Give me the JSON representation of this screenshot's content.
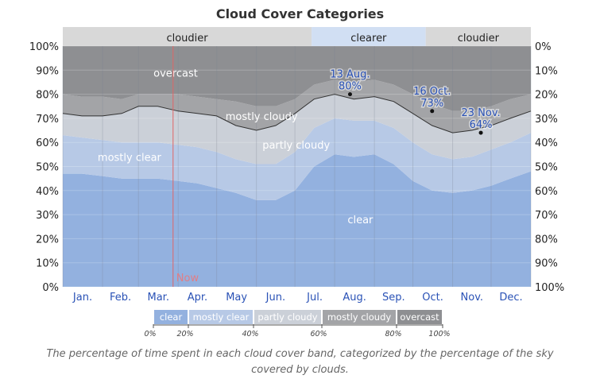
{
  "chart_data": {
    "type": "area",
    "title": "Cloud Cover Categories",
    "caption": "The percentage of time spent in each cloud cover band, categorized by the percentage of the sky covered by clouds.",
    "months": [
      "Jan.",
      "Feb.",
      "Mar.",
      "Apr.",
      "May",
      "Jun.",
      "Jul.",
      "Aug.",
      "Sep.",
      "Oct.",
      "Nov.",
      "Dec."
    ],
    "y_ticks_left": [
      "0%",
      "10%",
      "20%",
      "30%",
      "40%",
      "50%",
      "60%",
      "70%",
      "80%",
      "90%",
      "100%"
    ],
    "y_ticks_right": [
      "100%",
      "90%",
      "80%",
      "70%",
      "60%",
      "50%",
      "40%",
      "30%",
      "20%",
      "10%",
      "0%"
    ],
    "ylim": [
      0,
      100
    ],
    "x_day_of_year": [
      0,
      15,
      31,
      46,
      59,
      74,
      90,
      105,
      120,
      135,
      151,
      166,
      181,
      196,
      212,
      227,
      243,
      258,
      273,
      288,
      304,
      319,
      334,
      349,
      365
    ],
    "series": [
      {
        "name": "clear",
        "color": "#93b1df",
        "cumulative_upper": [
          47,
          47,
          46,
          45,
          45,
          45,
          44,
          43,
          41,
          39,
          36,
          36,
          40,
          50,
          55,
          54,
          55,
          51,
          44,
          40,
          39,
          40,
          42,
          45,
          48
        ]
      },
      {
        "name": "mostly clear",
        "color": "#b7c9e6",
        "cumulative_upper": [
          63,
          62,
          61,
          60,
          60,
          60,
          59,
          58,
          56,
          53,
          51,
          51,
          56,
          66,
          70,
          69,
          69,
          66,
          60,
          55,
          53,
          54,
          57,
          60,
          64
        ]
      },
      {
        "name": "partly cloudy",
        "color": "#cbd0d8",
        "cumulative_upper": [
          72,
          71,
          71,
          72,
          75,
          75,
          73,
          72,
          71,
          67,
          65,
          67,
          72,
          78,
          80,
          78,
          79,
          77,
          72,
          67,
          64,
          65,
          67,
          70,
          73
        ]
      },
      {
        "name": "mostly cloudy",
        "color": "#a3a4a7",
        "cumulative_upper": [
          80,
          79,
          79,
          78,
          80,
          80,
          80,
          79,
          78,
          77,
          75,
          75,
          78,
          84,
          86,
          85,
          86,
          84,
          80,
          76,
          73,
          73,
          75,
          78,
          80
        ]
      },
      {
        "name": "overcast",
        "color": "#8e8f92",
        "cumulative_upper": [
          100,
          100,
          100,
          100,
          100,
          100,
          100,
          100,
          100,
          100,
          100,
          100,
          100,
          100,
          100,
          100,
          100,
          100,
          100,
          100,
          100,
          100,
          100,
          100,
          100
        ]
      }
    ],
    "band_labels": [
      {
        "text": "overcast",
        "day": 88,
        "value": 89
      },
      {
        "text": "mostly cloudy",
        "day": 155,
        "value": 71
      },
      {
        "text": "partly cloudy",
        "day": 182,
        "value": 59
      },
      {
        "text": "mostly clear",
        "day": 52,
        "value": 54
      },
      {
        "text": "clear",
        "day": 232,
        "value": 28
      }
    ],
    "seasons": [
      {
        "label": "cloudier",
        "start_day": 0,
        "end_day": 194,
        "color": "#d8d8d8"
      },
      {
        "label": "clearer",
        "start_day": 194,
        "end_day": 283,
        "color": "#d1dff3"
      },
      {
        "label": "cloudier",
        "start_day": 283,
        "end_day": 365,
        "color": "#d8d8d8"
      }
    ],
    "annotations": [
      {
        "label": "13 Aug.",
        "value_text": "80%",
        "day": 224,
        "value": 80
      },
      {
        "label": "16 Oct.",
        "value_text": "73%",
        "day": 288,
        "value": 73
      },
      {
        "label": "23 Nov.",
        "value_text": "64%",
        "day": 326,
        "value": 64
      }
    ],
    "now_marker": {
      "label": "Now",
      "day": 86
    },
    "legend": [
      {
        "label": "clear",
        "color": "#93b1df"
      },
      {
        "label": "mostly clear",
        "color": "#b7c9e6"
      },
      {
        "label": "partly cloudy",
        "color": "#cbd0d8"
      },
      {
        "label": "mostly cloudy",
        "color": "#a3a4a7"
      },
      {
        "label": "overcast",
        "color": "#8e8f92"
      }
    ],
    "legend_ticks": [
      "0%",
      "20%",
      "40%",
      "60%",
      "80%",
      "100%"
    ]
  }
}
